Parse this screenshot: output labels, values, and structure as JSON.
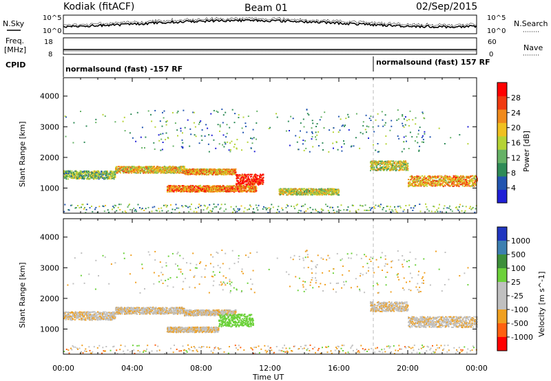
{
  "header": {
    "title": "Kodiak (fitACF)",
    "beam": "Beam 01",
    "date": "02/Sep/2015"
  },
  "top_panels": {
    "nsky_label": "N.Sky",
    "nsearch_label": "N.Search",
    "nsky_ticks": [
      "10^5",
      "10^0"
    ],
    "nsearch_ticks": [
      "10^5",
      "10^0"
    ],
    "freq_label": "Freq.",
    "freq_unit": "[MHz]",
    "freq_ticks": [
      "18",
      "8"
    ],
    "nave_label": "Nave",
    "nave_ticks": [
      "60",
      "0"
    ],
    "cpid_label": "CPID",
    "cpid_segments": [
      {
        "text": "normalsound (fast) -157 RF",
        "start_hour": 0
      },
      {
        "text": "normalsound (fast) 157 RF",
        "start_hour": 18
      }
    ]
  },
  "chart_data": [
    {
      "type": "heatmap",
      "name": "power-panel",
      "xlabel": "",
      "ylabel": "Slant Range [km]",
      "x_ticks": [
        "00:00",
        "04:00",
        "08:00",
        "12:00",
        "16:00",
        "20:00",
        "00:00"
      ],
      "xlim_hours": [
        0,
        24
      ],
      "ylim_km": [
        180,
        4600
      ],
      "y_ticks": [
        1000,
        2000,
        3000,
        4000
      ],
      "colorbar": {
        "label": "Power [dB]",
        "ticks": [
          "4",
          "8",
          "12",
          "16",
          "20",
          "24",
          "28"
        ],
        "range": [
          0,
          30
        ],
        "colors": [
          "#1f1fd6",
          "#2255b0",
          "#2e8b57",
          "#66b266",
          "#b5d334",
          "#f0c020",
          "#f08a1c",
          "#f03a10",
          "#ff0000"
        ]
      },
      "bands": [
        {
          "start": 0.0,
          "end": 3.0,
          "center_km": 1450,
          "width_km": 170,
          "level": 12
        },
        {
          "start": 3.0,
          "end": 7.0,
          "center_km": 1620,
          "width_km": 140,
          "level": 18
        },
        {
          "start": 7.0,
          "end": 10.0,
          "center_km": 1550,
          "width_km": 120,
          "level": 20
        },
        {
          "start": 6.0,
          "end": 11.2,
          "center_km": 1000,
          "width_km": 130,
          "level": 22
        },
        {
          "start": 10.0,
          "end": 11.6,
          "center_km": 1300,
          "width_km": 220,
          "level": 28
        },
        {
          "start": 17.8,
          "end": 20.0,
          "center_km": 1750,
          "width_km": 200,
          "level": 16
        },
        {
          "start": 20.0,
          "end": 24.0,
          "center_km": 1250,
          "width_km": 220,
          "level": 20
        },
        {
          "start": 12.5,
          "end": 16.0,
          "center_km": 900,
          "width_km": 130,
          "level": 16
        }
      ]
    },
    {
      "type": "heatmap",
      "name": "velocity-panel",
      "xlabel": "Time UT",
      "ylabel": "Slant Range [km]",
      "x_ticks": [
        "00:00",
        "04:00",
        "08:00",
        "12:00",
        "16:00",
        "20:00",
        "00:00"
      ],
      "xlim_hours": [
        0,
        24
      ],
      "ylim_km": [
        180,
        4600
      ],
      "y_ticks": [
        1000,
        2000,
        3000,
        4000
      ],
      "colorbar": {
        "label": "Velocity [m s^-1]",
        "ticks": [
          "1000",
          "500",
          "100",
          "25",
          "-25",
          "-100",
          "-500",
          "-1000"
        ],
        "colors": [
          "#2036c0",
          "#3d7fb0",
          "#3d8f3a",
          "#6cd13a",
          "#c0c0c0",
          "#c0c0c0",
          "#f0a020",
          "#ff6010",
          "#ff0000"
        ]
      },
      "bands": [
        {
          "start": 0.0,
          "end": 3.0,
          "center_km": 1450,
          "width_km": 170,
          "level": 0
        },
        {
          "start": 3.0,
          "end": 7.0,
          "center_km": 1620,
          "width_km": 140,
          "level": 0
        },
        {
          "start": 7.0,
          "end": 10.0,
          "center_km": 1550,
          "width_km": 120,
          "level": 0
        },
        {
          "start": 9.0,
          "end": 11.0,
          "center_km": 1300,
          "width_km": 260,
          "level": 200
        },
        {
          "start": 6.0,
          "end": 9.0,
          "center_km": 1000,
          "width_km": 110,
          "level": 0
        },
        {
          "start": 17.8,
          "end": 20.0,
          "center_km": 1750,
          "width_km": 200,
          "level": 0
        },
        {
          "start": 20.0,
          "end": 24.0,
          "center_km": 1250,
          "width_km": 220,
          "level": 0
        }
      ]
    }
  ]
}
